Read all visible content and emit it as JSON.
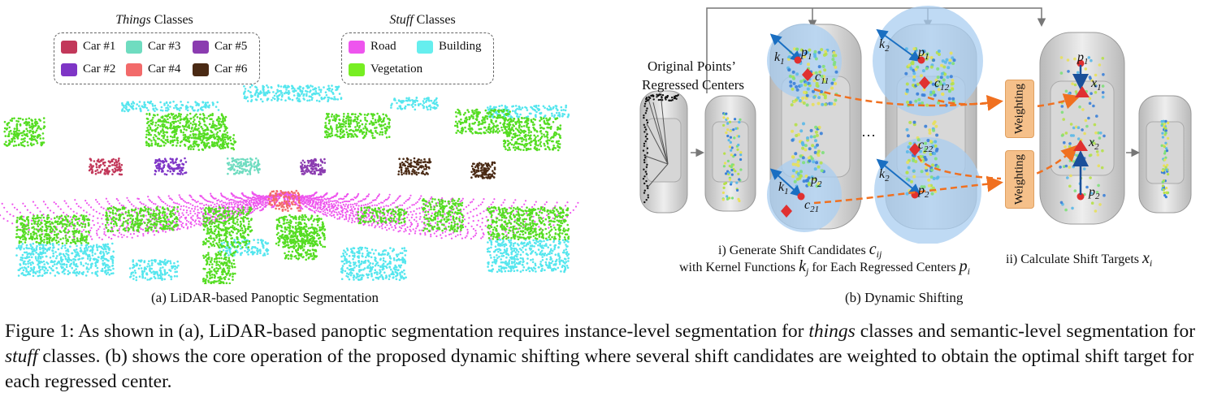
{
  "panel_a": {
    "things_legend": {
      "title_em": "Things",
      "title_rest": " Classes",
      "items": [
        {
          "label": "Car #1",
          "color": "#c2385a"
        },
        {
          "label": "Car #3",
          "color": "#6fdcc0"
        },
        {
          "label": "Car #5",
          "color": "#8b3cb0"
        },
        {
          "label": "Car #2",
          "color": "#7e35c6"
        },
        {
          "label": "Car #4",
          "color": "#f26a6a"
        },
        {
          "label": "Car #6",
          "color": "#4a2a14"
        }
      ]
    },
    "stuff_legend": {
      "title_em": "Stuff",
      "title_rest": " Classes",
      "items": [
        {
          "label": "Road",
          "color": "#ee55ee"
        },
        {
          "label": "Building",
          "color": "#66eeee"
        },
        {
          "label": "Vegetation",
          "color": "#77ee22"
        }
      ]
    },
    "sub_caption": "(a)  LiDAR-based  Panoptic Segmentation"
  },
  "panel_b": {
    "orig_label_line1": "Original Points’",
    "orig_label_line2": "Regressed Centers",
    "ellipsis": "…",
    "symbols": {
      "k1": "k",
      "k1_sub": "1",
      "k2": "k",
      "k2_sub": "2",
      "p1": "p",
      "p1_sub": "1",
      "p2": "p",
      "p2_sub": "2",
      "c11": "c",
      "c11_sub": "11",
      "c12": "c",
      "c12_sub": "12",
      "c21": "c",
      "c21_sub": "21",
      "c22": "c",
      "c22_sub": "22",
      "x1": "x",
      "x1_sub": "1",
      "x2": "x",
      "x2_sub": "2"
    },
    "weighting_label": "Weighting",
    "step1_line1": "i) Generate Shift Candidates ",
    "step1_sym": "c",
    "step1_sym_sub": "ij",
    "step1_line2": "with Kernel Functions ",
    "step1_k": "k",
    "step1_k_sub": "j",
    "step1_mid": " for Each Regressed Centers ",
    "step1_p": "p",
    "step1_p_sub": "i",
    "step2": "ii) Calculate Shift Targets ",
    "step2_sym": "x",
    "step2_sym_sub": "i",
    "sub_caption": "(b) Dynamic Shifting"
  },
  "caption": {
    "label": "Figure 1:",
    "t1": " As shown in (a), LiDAR-based panoptic segmentation requires instance-level segmentation for ",
    "em1": "things",
    "t2": " classes and semantic-level segmentation for ",
    "em2": "stuff",
    "t3": " classes.  (b) shows the core operation of the proposed dynamic shifting where several shift candidates are weighted to obtain the optimal shift target for each regressed center."
  },
  "colors": {
    "road": "#ee55ee",
    "building": "#55e6ee",
    "vegetation": "#55dd22",
    "kernel_circle": "#a9cdf0",
    "arrow_orange": "#f07020",
    "arrow_blue": "#1a4f9a",
    "point_red": "#e03030",
    "weighting_fill": "#f5c08a"
  }
}
